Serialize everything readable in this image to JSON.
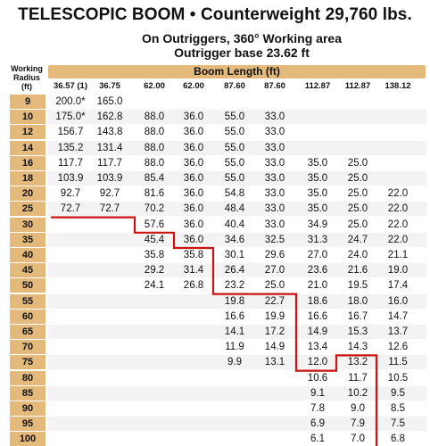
{
  "header": {
    "title": "TELESCOPIC BOOM • Counterweight 29,760 lbs.",
    "subtitle_line1": "On Outriggers, 360° Working area",
    "subtitle_line2": "Outrigger base 23.62 ft"
  },
  "table": {
    "radius_header": [
      "Working",
      "Radius",
      "(ft)"
    ],
    "boom_header": "Boom Length (ft)",
    "columns": [
      "36.57 (1)",
      "36.75",
      "62.00",
      "62.00",
      "87.60",
      "87.60",
      "112.87",
      "112.87",
      "138.12"
    ],
    "rows": [
      {
        "radius": "9",
        "cells": [
          "200.0*",
          "165.0",
          "",
          "",
          "",
          "",
          "",
          "",
          ""
        ]
      },
      {
        "radius": "10",
        "cells": [
          "175.0*",
          "162.8",
          "88.0",
          "36.0",
          "55.0",
          "33.0",
          "",
          "",
          ""
        ]
      },
      {
        "radius": "12",
        "cells": [
          "156.7",
          "143.8",
          "88.0",
          "36.0",
          "55.0",
          "33.0",
          "",
          "",
          ""
        ]
      },
      {
        "radius": "14",
        "cells": [
          "135.2",
          "131.4",
          "88.0",
          "36.0",
          "55.0",
          "33.0",
          "",
          "",
          ""
        ]
      },
      {
        "radius": "16",
        "cells": [
          "117.7",
          "117.7",
          "88.0",
          "36.0",
          "55.0",
          "33.0",
          "35.0",
          "25.0",
          ""
        ]
      },
      {
        "radius": "18",
        "cells": [
          "103.9",
          "103.9",
          "85.4",
          "36.0",
          "55.0",
          "33.0",
          "35.0",
          "25.0",
          ""
        ]
      },
      {
        "radius": "20",
        "cells": [
          "92.7",
          "92.7",
          "81.6",
          "36.0",
          "54.8",
          "33.0",
          "35.0",
          "25.0",
          "22.0"
        ]
      },
      {
        "radius": "25",
        "cells": [
          "72.7",
          "72.7",
          "70.2",
          "36.0",
          "48.4",
          "33.0",
          "35.0",
          "25.0",
          "22.0"
        ]
      },
      {
        "radius": "30",
        "cells": [
          "",
          "",
          "57.6",
          "36.0",
          "40.4",
          "33.0",
          "34.9",
          "25.0",
          "22.0"
        ]
      },
      {
        "radius": "35",
        "cells": [
          "",
          "",
          "45.4",
          "36.0",
          "34.6",
          "32.5",
          "31.3",
          "24.7",
          "22.0"
        ]
      },
      {
        "radius": "40",
        "cells": [
          "",
          "",
          "35.8",
          "35.8",
          "30.1",
          "29.6",
          "27.0",
          "24.0",
          "21.1"
        ]
      },
      {
        "radius": "45",
        "cells": [
          "",
          "",
          "29.2",
          "31.4",
          "26.4",
          "27.0",
          "23.6",
          "21.6",
          "19.0"
        ]
      },
      {
        "radius": "50",
        "cells": [
          "",
          "",
          "24.1",
          "26.8",
          "23.2",
          "25.0",
          "21.0",
          "19.5",
          "17.4"
        ]
      },
      {
        "radius": "55",
        "cells": [
          "",
          "",
          "",
          "",
          "19.8",
          "22.7",
          "18.6",
          "18.0",
          "16.0"
        ]
      },
      {
        "radius": "60",
        "cells": [
          "",
          "",
          "",
          "",
          "16.6",
          "19.9",
          "16.6",
          "16.7",
          "14.7"
        ]
      },
      {
        "radius": "65",
        "cells": [
          "",
          "",
          "",
          "",
          "14.1",
          "17.2",
          "14.9",
          "15.3",
          "13.7"
        ]
      },
      {
        "radius": "70",
        "cells": [
          "",
          "",
          "",
          "",
          "11.9",
          "14.9",
          "13.4",
          "14.3",
          "12.6"
        ]
      },
      {
        "radius": "75",
        "cells": [
          "",
          "",
          "",
          "",
          "9.9",
          "13.1",
          "12.0",
          "13.2",
          "11.5"
        ]
      },
      {
        "radius": "80",
        "cells": [
          "",
          "",
          "",
          "",
          "",
          "",
          "10.6",
          "11.7",
          "10.5"
        ]
      },
      {
        "radius": "85",
        "cells": [
          "",
          "",
          "",
          "",
          "",
          "",
          "9.1",
          "10.2",
          "9.5"
        ]
      },
      {
        "radius": "90",
        "cells": [
          "",
          "",
          "",
          "",
          "",
          "",
          "7.8",
          "9.0",
          "8.5"
        ]
      },
      {
        "radius": "95",
        "cells": [
          "",
          "",
          "",
          "",
          "",
          "",
          "6.9",
          "7.9",
          "7.5"
        ]
      },
      {
        "radius": "100",
        "cells": [
          "",
          "",
          "",
          "",
          "",
          "",
          "6.1",
          "7.0",
          "6.8"
        ]
      }
    ]
  },
  "colors": {
    "header_fill": "#e3b97c",
    "limit_line": "#cc1111",
    "row_band": "#f3f3f3"
  }
}
